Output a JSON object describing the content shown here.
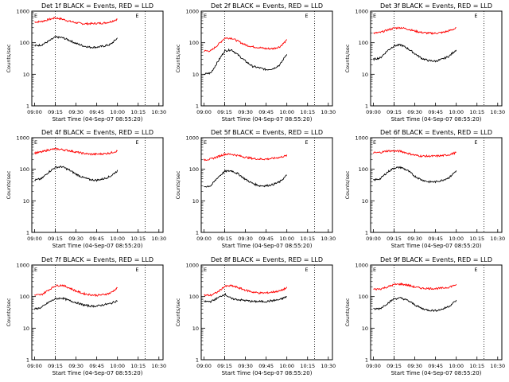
{
  "figure": {
    "xlabel": "Start Time (04-Sep-07 08:55:20)",
    "ylabel": "Counts/sec",
    "x_tick_labels": [
      "09:00",
      "09:15",
      "09:30",
      "09:45",
      "10:00",
      "10:15",
      "10:30"
    ],
    "y_tick_labels": [
      "1",
      "10",
      "100",
      "1000"
    ],
    "marker_label": "E",
    "colors": {
      "events": "#000000",
      "lld": "#ff0000",
      "axes": "#000000"
    }
  },
  "chart_data": [
    {
      "type": "line",
      "title": "Det 1f BLACK = Events, RED = LLD",
      "xlabel": "Start Time (04-Sep-07 08:55:20)",
      "ylabel": "Counts/sec",
      "yscale": "log",
      "ylim": [
        1,
        1000
      ],
      "x": [
        "09:00",
        "09:05",
        "09:10",
        "09:15",
        "09:20",
        "09:25",
        "09:30",
        "09:35",
        "09:40",
        "09:45",
        "09:50",
        "09:55",
        "10:00"
      ],
      "vlines": [
        "09:15",
        "10:20"
      ],
      "series": [
        {
          "name": "LLD",
          "values": [
            450,
            470,
            540,
            610,
            560,
            480,
            430,
            400,
            400,
            410,
            420,
            460,
            560
          ]
        },
        {
          "name": "Events",
          "values": [
            80,
            85,
            110,
            150,
            145,
            120,
            95,
            80,
            72,
            72,
            78,
            88,
            140
          ]
        }
      ]
    },
    {
      "type": "line",
      "title": "Det 2f BLACK = Events, RED = LLD",
      "xlabel": "Start Time (04-Sep-07 08:55:20)",
      "ylabel": "Counts/sec",
      "yscale": "log",
      "ylim": [
        1,
        1000
      ],
      "x": [
        "09:00",
        "09:05",
        "09:10",
        "09:15",
        "09:20",
        "09:25",
        "09:30",
        "09:35",
        "09:40",
        "09:45",
        "09:50",
        "09:55",
        "10:00"
      ],
      "vlines": [
        "09:15",
        "10:20"
      ],
      "series": [
        {
          "name": "LLD",
          "values": [
            55,
            55,
            85,
            140,
            140,
            110,
            85,
            75,
            70,
            65,
            65,
            75,
            120
          ]
        },
        {
          "name": "Events",
          "values": [
            10,
            11,
            25,
            55,
            60,
            40,
            26,
            18,
            16,
            14,
            15,
            20,
            45
          ]
        }
      ]
    },
    {
      "type": "line",
      "title": "Det 3f BLACK = Events, RED = LLD",
      "xlabel": "Start Time (04-Sep-07 08:55:20)",
      "ylabel": "Counts/sec",
      "yscale": "log",
      "ylim": [
        1,
        1000
      ],
      "x": [
        "09:00",
        "09:05",
        "09:10",
        "09:15",
        "09:20",
        "09:25",
        "09:30",
        "09:35",
        "09:40",
        "09:45",
        "09:50",
        "09:55",
        "10:00"
      ],
      "vlines": [
        "09:15",
        "10:20"
      ],
      "series": [
        {
          "name": "LLD",
          "values": [
            200,
            210,
            250,
            290,
            300,
            270,
            235,
            210,
            200,
            200,
            210,
            240,
            290
          ]
        },
        {
          "name": "Events",
          "values": [
            30,
            33,
            55,
            80,
            85,
            65,
            45,
            32,
            27,
            26,
            30,
            38,
            60
          ]
        }
      ]
    },
    {
      "type": "line",
      "title": "Det 4f BLACK = Events, RED = LLD",
      "xlabel": "Start Time (04-Sep-07 08:55:20)",
      "ylabel": "Counts/sec",
      "yscale": "log",
      "ylim": [
        1,
        1000
      ],
      "x": [
        "09:00",
        "09:05",
        "09:10",
        "09:15",
        "09:20",
        "09:25",
        "09:30",
        "09:35",
        "09:40",
        "09:45",
        "09:50",
        "09:55",
        "10:00"
      ],
      "vlines": [
        "09:15",
        "10:20"
      ],
      "series": [
        {
          "name": "LLD",
          "values": [
            330,
            350,
            410,
            440,
            420,
            390,
            350,
            320,
            300,
            300,
            310,
            330,
            380
          ]
        },
        {
          "name": "Events",
          "values": [
            45,
            50,
            80,
            115,
            120,
            95,
            70,
            55,
            47,
            45,
            50,
            60,
            90
          ]
        }
      ]
    },
    {
      "type": "line",
      "title": "Det 5f BLACK = Events, RED = LLD",
      "xlabel": "Start Time (04-Sep-07 08:55:20)",
      "ylabel": "Counts/sec",
      "yscale": "log",
      "ylim": [
        1,
        1000
      ],
      "x": [
        "09:00",
        "09:05",
        "09:10",
        "09:15",
        "09:20",
        "09:25",
        "09:30",
        "09:35",
        "09:40",
        "09:45",
        "09:50",
        "09:55",
        "10:00"
      ],
      "vlines": [
        "09:15",
        "10:20"
      ],
      "series": [
        {
          "name": "LLD",
          "values": [
            200,
            210,
            250,
            300,
            300,
            270,
            240,
            220,
            210,
            210,
            220,
            240,
            270
          ]
        },
        {
          "name": "Events",
          "values": [
            28,
            30,
            55,
            85,
            90,
            70,
            48,
            36,
            30,
            30,
            33,
            40,
            65
          ]
        }
      ]
    },
    {
      "type": "line",
      "title": "Det 6f BLACK = Events, RED = LLD",
      "xlabel": "Start Time (04-Sep-07 08:55:20)",
      "ylabel": "Counts/sec",
      "yscale": "log",
      "ylim": [
        1,
        1000
      ],
      "x": [
        "09:00",
        "09:05",
        "09:10",
        "09:15",
        "09:20",
        "09:25",
        "09:30",
        "09:35",
        "09:40",
        "09:45",
        "09:50",
        "09:55",
        "10:00"
      ],
      "vlines": [
        "09:15",
        "10:20"
      ],
      "series": [
        {
          "name": "LLD",
          "values": [
            330,
            340,
            380,
            380,
            370,
            320,
            280,
            260,
            260,
            260,
            270,
            290,
            340
          ]
        },
        {
          "name": "Events",
          "values": [
            45,
            50,
            80,
            110,
            115,
            90,
            60,
            46,
            40,
            40,
            45,
            55,
            90
          ]
        }
      ]
    },
    {
      "type": "line",
      "title": "Det 7f BLACK = Events, RED = LLD",
      "xlabel": "Start Time (04-Sep-07 08:55:20)",
      "ylabel": "Counts/sec",
      "yscale": "log",
      "ylim": [
        1,
        1000
      ],
      "x": [
        "09:00",
        "09:05",
        "09:10",
        "09:15",
        "09:20",
        "09:25",
        "09:30",
        "09:35",
        "09:40",
        "09:45",
        "09:50",
        "09:55",
        "10:00"
      ],
      "vlines": [
        "09:15",
        "10:20"
      ],
      "series": [
        {
          "name": "LLD",
          "values": [
            110,
            115,
            160,
            220,
            230,
            190,
            150,
            125,
            115,
            110,
            115,
            130,
            190
          ]
        },
        {
          "name": "Events",
          "values": [
            40,
            45,
            65,
            85,
            90,
            75,
            65,
            55,
            50,
            50,
            55,
            60,
            75
          ]
        }
      ]
    },
    {
      "type": "line",
      "title": "Det 8f BLACK = Events, RED = LLD",
      "xlabel": "Start Time (04-Sep-07 08:55:20)",
      "ylabel": "Counts/sec",
      "yscale": "log",
      "ylim": [
        1,
        1000
      ],
      "x": [
        "09:00",
        "09:05",
        "09:10",
        "09:15",
        "09:20",
        "09:25",
        "09:30",
        "09:35",
        "09:40",
        "09:45",
        "09:50",
        "09:55",
        "10:00"
      ],
      "vlines": [
        "09:15",
        "10:20"
      ],
      "series": [
        {
          "name": "LLD",
          "values": [
            110,
            110,
            140,
            210,
            220,
            190,
            160,
            140,
            130,
            130,
            140,
            150,
            190
          ]
        },
        {
          "name": "Events",
          "values": [
            70,
            70,
            90,
            120,
            85,
            80,
            75,
            70,
            70,
            70,
            75,
            80,
            100
          ]
        }
      ]
    },
    {
      "type": "line",
      "title": "Det 9f BLACK = Events, RED = LLD",
      "xlabel": "Start Time (04-Sep-07 08:55:20)",
      "ylabel": "Counts/sec",
      "yscale": "log",
      "ylim": [
        1,
        1000
      ],
      "x": [
        "09:00",
        "09:05",
        "09:10",
        "09:15",
        "09:20",
        "09:25",
        "09:30",
        "09:35",
        "09:40",
        "09:45",
        "09:50",
        "09:55",
        "10:00"
      ],
      "vlines": [
        "09:15",
        "10:20"
      ],
      "series": [
        {
          "name": "LLD",
          "values": [
            170,
            175,
            200,
            240,
            250,
            230,
            200,
            185,
            180,
            180,
            185,
            200,
            240
          ]
        },
        {
          "name": "Events",
          "values": [
            40,
            42,
            60,
            85,
            90,
            75,
            55,
            42,
            37,
            36,
            40,
            50,
            75
          ]
        }
      ]
    }
  ]
}
